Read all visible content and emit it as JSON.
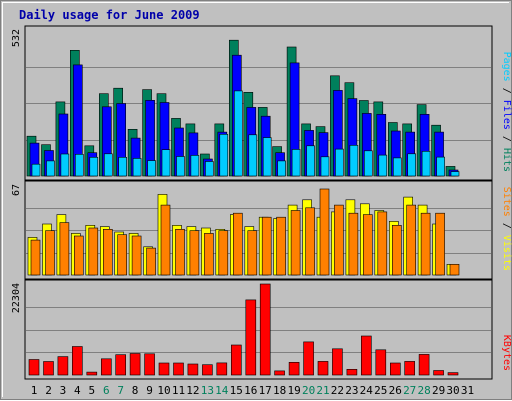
{
  "chart_data": {
    "type": "bar",
    "title": "Daily usage for June 2009",
    "days": [
      "1",
      "2",
      "3",
      "4",
      "5",
      "6",
      "7",
      "8",
      "9",
      "10",
      "11",
      "12",
      "13",
      "14",
      "15",
      "16",
      "17",
      "18",
      "19",
      "20",
      "21",
      "22",
      "23",
      "24",
      "25",
      "26",
      "27",
      "28",
      "29",
      "30",
      "31"
    ],
    "weekend_days": [
      "6",
      "7",
      "13",
      "14",
      "20",
      "21",
      "27",
      "28"
    ],
    "panels": [
      {
        "key": "hits",
        "ymax_label": "532",
        "ylim": [
          0,
          532
        ],
        "legend": [
          {
            "text": "Pages",
            "color": "#00ccff"
          },
          {
            "text": " / ",
            "color": "#000000"
          },
          {
            "text": "Files",
            "color": "#0000ff"
          },
          {
            "text": " / ",
            "color": "#000000"
          },
          {
            "text": "Hits",
            "color": "#00805c"
          }
        ],
        "series": [
          {
            "name": "Hits",
            "color": "#00805c",
            "values": [
              145,
              114,
              270,
              458,
              110,
              300,
              320,
              170,
              315,
              300,
              210,
              190,
              80,
              190,
              495,
              305,
              250,
              107,
              470,
              190,
              180,
              365,
              340,
              275,
              270,
              195,
              190,
              260,
              185,
              35,
              0
            ]
          },
          {
            "name": "Files",
            "color": "#0000ff",
            "values": [
              120,
              93,
              226,
              405,
              85,
              252,
              264,
              138,
              276,
              268,
              175,
              157,
              62,
              160,
              440,
              250,
              218,
              85,
              412,
              166,
              158,
              312,
              282,
              228,
              225,
              164,
              160,
              225,
              160,
              22,
              0
            ]
          },
          {
            "name": "Pages",
            "color": "#00ccff",
            "values": [
              43,
              55,
              80,
              79,
              68,
              81,
              68,
              64,
              56,
              96,
              71,
              75,
              53,
              152,
              310,
              150,
              140,
              55,
              97,
              110,
              70,
              98,
              112,
              92,
              76,
              66,
              81,
              90,
              69,
              16,
              0
            ]
          }
        ]
      },
      {
        "key": "visits",
        "ymax_label": "67",
        "ylim": [
          0,
          67
        ],
        "legend": [
          {
            "text": "Sites",
            "color": "#ff8000"
          },
          {
            "text": " / ",
            "color": "#000000"
          },
          {
            "text": "Visits",
            "color": "#ffff00"
          }
        ],
        "series": [
          {
            "name": "Visits",
            "color": "#ffff00",
            "values": [
              28,
              38,
              45,
              31,
              37,
              36,
              32,
              31,
              21,
              60,
              37,
              36,
              35,
              34,
              45,
              36,
              43,
              42,
              52,
              56,
              43,
              47,
              56,
              53,
              48,
              40,
              58,
              52,
              38,
              8,
              0
            ]
          },
          {
            "name": "Sites",
            "color": "#ff8000",
            "values": [
              26,
              33,
              39,
              29,
              35,
              34,
              30,
              29,
              20,
              52,
              34,
              33,
              31,
              33,
              46,
              33,
              43,
              43,
              48,
              50,
              64,
              52,
              46,
              45,
              47,
              37,
              52,
              46,
              46,
              8,
              0
            ]
          }
        ]
      },
      {
        "key": "kbytes",
        "ymax_label": "22304",
        "ylim": [
          0,
          22304
        ],
        "legend": [
          {
            "text": "KBytes",
            "color": "#ff0000"
          }
        ],
        "series": [
          {
            "name": "KBytes",
            "color": "#ff0000",
            "values": [
              3800,
              3300,
              4520,
              6990,
              700,
              3980,
              4970,
              5260,
              5190,
              2930,
              2950,
              2690,
              2520,
              2960,
              7360,
              18400,
              22304,
              1000,
              3110,
              8110,
              3340,
              6410,
              1390,
              9560,
              6180,
              2930,
              3330,
              5050,
              1100,
              600,
              0
            ]
          }
        ]
      }
    ],
    "grid": true
  }
}
